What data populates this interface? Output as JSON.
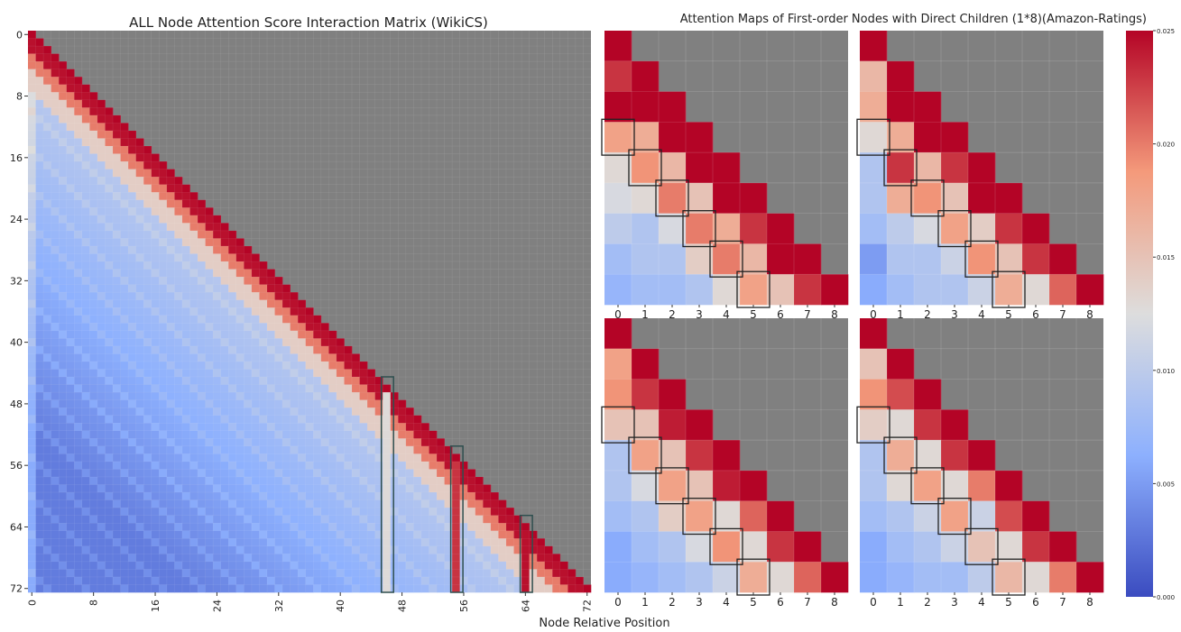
{
  "figure": {
    "xlabel": "Node Relative Position"
  },
  "chart_data": [
    {
      "type": "heatmap",
      "title": "ALL Node Attention Score Interaction Matrix (WikiCS)",
      "size": 73,
      "xticks": [
        0,
        8,
        16,
        24,
        32,
        40,
        48,
        56,
        64,
        72
      ],
      "yticks": [
        0,
        8,
        16,
        24,
        32,
        40,
        48,
        56,
        64,
        72
      ],
      "masked_region": "upper-triangle",
      "mask_color": "#808080",
      "highlight_columns": [
        46,
        55,
        64
      ],
      "description_of_values": "diagonal = 0.025 (max); values decay with distance below the diagonal to about 0.003"
    },
    {
      "type": "heatmap",
      "title": "Attention Maps of First-order Nodes with Direct Children (1*8)(Amazon-Ratings)",
      "size": 9,
      "xticks": [
        0,
        1,
        2,
        3,
        4,
        5,
        6,
        7,
        8
      ],
      "masked_region": "upper-triangle",
      "mask_color": "#808080",
      "panels": [
        {
          "name": "top-left",
          "matrix": [
            [
              0.025
            ],
            [
              0.023,
              0.025
            ],
            [
              0.025,
              0.025,
              0.025
            ],
            [
              0.018,
              0.017,
              0.025,
              0.025
            ],
            [
              0.013,
              0.019,
              0.016,
              0.025,
              0.025
            ],
            [
              0.012,
              0.013,
              0.02,
              0.015,
              0.025,
              0.025
            ],
            [
              0.01,
              0.009,
              0.012,
              0.02,
              0.017,
              0.023,
              0.025
            ],
            [
              0.008,
              0.009,
              0.009,
              0.014,
              0.02,
              0.016,
              0.025,
              0.025
            ],
            [
              0.007,
              0.008,
              0.008,
              0.009,
              0.013,
              0.018,
              0.015,
              0.023,
              0.025
            ]
          ]
        },
        {
          "name": "top-right",
          "matrix": [
            [
              0.025
            ],
            [
              0.016,
              0.025
            ],
            [
              0.017,
              0.025,
              0.025
            ],
            [
              0.013,
              0.017,
              0.025,
              0.025
            ],
            [
              0.009,
              0.023,
              0.016,
              0.023,
              0.025
            ],
            [
              0.009,
              0.017,
              0.019,
              0.015,
              0.025,
              0.025
            ],
            [
              0.008,
              0.01,
              0.012,
              0.018,
              0.014,
              0.023,
              0.025
            ],
            [
              0.005,
              0.009,
              0.009,
              0.011,
              0.019,
              0.015,
              0.023,
              0.025
            ],
            [
              0.006,
              0.008,
              0.009,
              0.009,
              0.011,
              0.017,
              0.013,
              0.021,
              0.025
            ]
          ]
        },
        {
          "name": "bottom-left",
          "matrix": [
            [
              0.025
            ],
            [
              0.018,
              0.025
            ],
            [
              0.019,
              0.023,
              0.025
            ],
            [
              0.015,
              0.015,
              0.024,
              0.025
            ],
            [
              0.009,
              0.018,
              0.015,
              0.023,
              0.025
            ],
            [
              0.009,
              0.012,
              0.018,
              0.015,
              0.024,
              0.025
            ],
            [
              0.008,
              0.009,
              0.014,
              0.018,
              0.013,
              0.021,
              0.025
            ],
            [
              0.006,
              0.008,
              0.009,
              0.012,
              0.019,
              0.013,
              0.023,
              0.025
            ],
            [
              0.006,
              0.007,
              0.008,
              0.009,
              0.011,
              0.017,
              0.013,
              0.021,
              0.025
            ]
          ]
        },
        {
          "name": "bottom-right",
          "matrix": [
            [
              0.025
            ],
            [
              0.015,
              0.025
            ],
            [
              0.019,
              0.022,
              0.025
            ],
            [
              0.014,
              0.013,
              0.023,
              0.025
            ],
            [
              0.009,
              0.017,
              0.013,
              0.023,
              0.025
            ],
            [
              0.009,
              0.013,
              0.018,
              0.013,
              0.02,
              0.025
            ],
            [
              0.008,
              0.009,
              0.011,
              0.018,
              0.011,
              0.022,
              0.025
            ],
            [
              0.006,
              0.008,
              0.009,
              0.011,
              0.015,
              0.013,
              0.023,
              0.025
            ],
            [
              0.006,
              0.007,
              0.008,
              0.008,
              0.01,
              0.016,
              0.013,
              0.02,
              0.025
            ]
          ]
        }
      ],
      "highlight_boxes": [
        [
          3,
          0
        ],
        [
          4,
          1
        ],
        [
          5,
          2
        ],
        [
          6,
          3
        ],
        [
          7,
          4
        ],
        [
          8,
          5
        ]
      ]
    }
  ],
  "colorbar": {
    "colormap": "coolwarm",
    "min": 0.0,
    "max": 0.025,
    "ticks": [
      "0.025",
      "0.020",
      "0.015",
      "0.010",
      "0.005",
      "0.000"
    ],
    "colors": {
      "low": "#3b4cc0",
      "mid": "#dddddd",
      "high": "#b40426"
    }
  }
}
